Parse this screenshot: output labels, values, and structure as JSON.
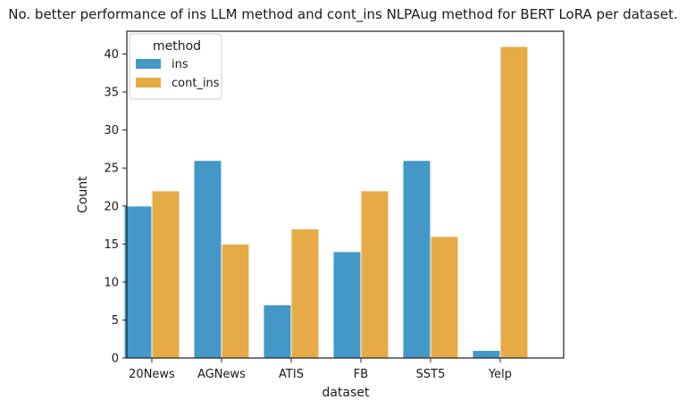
{
  "chart_data": {
    "type": "bar",
    "title": "No. better performance of ins LLM method and cont_ins NLPAug method for BERT LoRA per dataset.",
    "xlabel": "dataset",
    "ylabel": "Count",
    "categories": [
      "20News",
      "AGNews",
      "ATIS",
      "FB",
      "SST5",
      "Yelp"
    ],
    "series": [
      {
        "name": "ins",
        "values": [
          20,
          26,
          7,
          14,
          26,
          1
        ],
        "color": "#4398C8"
      },
      {
        "name": "cont_ins",
        "values": [
          22,
          15,
          17,
          22,
          16,
          41
        ],
        "color": "#E6AB46"
      }
    ],
    "ylim": [
      0,
      43
    ],
    "yticks": [
      0,
      5,
      10,
      15,
      20,
      25,
      30,
      35,
      40
    ],
    "legend": {
      "title": "method",
      "placement": "top-left"
    },
    "grid": false
  }
}
